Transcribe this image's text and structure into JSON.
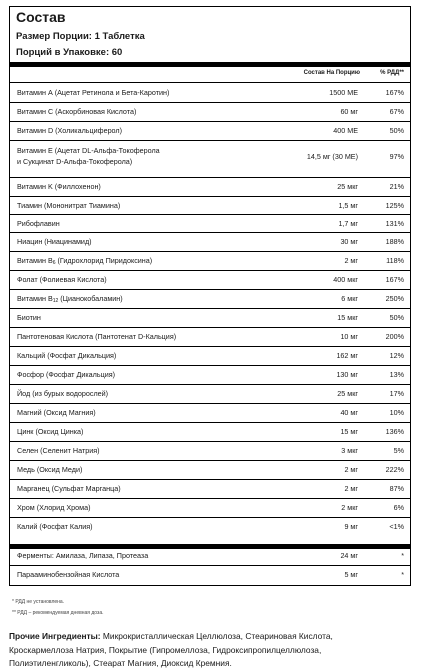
{
  "title": "Состав",
  "serving_size": "Размер Порции: 1 Таблетка",
  "servings": "Порций в Упаковке: 60",
  "headers": {
    "amount": "Состав На Порцию",
    "dv": "% РДД**"
  },
  "rows": [
    {
      "name": "Витамин А (Ацетат Ретинола и Бета-Каротин)",
      "amount": "1500 МЕ",
      "dv": "167%"
    },
    {
      "name": "Витамин С (Аскорбиновая Кислота)",
      "amount": "60 мг",
      "dv": "67%"
    },
    {
      "name": "Витамин D (Холикальциферол)",
      "amount": "400 МЕ",
      "dv": "50%"
    },
    {
      "name": "Витамин Е (Ацетат DL-Альфа-Токоферола",
      "name2": "и Сукцинат D-Альфа-Токоферола)",
      "amount": "14,5 мг (30 МЕ)",
      "dv": "97%"
    },
    {
      "name": "Витамин K (Филлохенон)",
      "amount": "25 мкг",
      "dv": "21%"
    },
    {
      "name": "Тиамин (Мононитрат Тиамина)",
      "amount": "1,5 мг",
      "dv": "125%"
    },
    {
      "name": "Рибофлавин",
      "amount": "1,7 мг",
      "dv": "131%"
    },
    {
      "name": "Ниацин (Ниацинамид)",
      "amount": "30 мг",
      "dv": "188%"
    },
    {
      "name": "Витамин B",
      "sub": "6",
      "name_rest": " (Гидрохлорид Пиридоксина)",
      "amount": "2 мг",
      "dv": "118%"
    },
    {
      "name": "Фолат (Фолиевая Кислота)",
      "amount": "400 мкг",
      "dv": "167%"
    },
    {
      "name": "Витамин B",
      "sub": "12",
      "name_rest": " (Цианокобаламин)",
      "amount": "6 мкг",
      "dv": "250%"
    },
    {
      "name": "Биотин",
      "amount": "15 мкг",
      "dv": "50%"
    },
    {
      "name": "Пантотеновая Кислота (Пантотенат D-Кальция)",
      "amount": "10 мг",
      "dv": "200%"
    },
    {
      "name": "Кальций (Фосфат Дикальция)",
      "amount": "162 мг",
      "dv": "12%"
    },
    {
      "name": "Фосфор (Фосфат Дикальция)",
      "amount": "130 мг",
      "dv": "13%"
    },
    {
      "name": "Йод (из бурых водорослей)",
      "amount": "25 мкг",
      "dv": "17%"
    },
    {
      "name": "Магний (Оксид Магния)",
      "amount": "40 мг",
      "dv": "10%"
    },
    {
      "name": "Цинк (Оксид Цинка)",
      "amount": "15 мг",
      "dv": "136%"
    },
    {
      "name": "Селен (Селенит Натрия)",
      "amount": "3 мкг",
      "dv": "5%"
    },
    {
      "name": "Медь (Оксид Меди)",
      "amount": "2 мг",
      "dv": "222%"
    },
    {
      "name": "Марганец (Сульфат Марганца)",
      "amount": "2 мг",
      "dv": "87%"
    },
    {
      "name": "Хром (Хлорид Хрома)",
      "amount": "2 мкг",
      "dv": "6%"
    },
    {
      "name": "Калий (Фосфат Калия)",
      "amount": "9 мг",
      "dv": "<1%"
    }
  ],
  "rows2": [
    {
      "name": "Ферменты: Амилаза, Липаза, Протеаза",
      "amount": "24 мг",
      "dv": "*"
    },
    {
      "name": "Парааминобензойная Кислота",
      "amount": "5 мг",
      "dv": "*"
    }
  ],
  "footnotes": [
    "* РДД не установлена.",
    "** РДД – рекомендуемая дневная доза."
  ],
  "other": {
    "label": "Прочие Ингредиенты:",
    "line1": " Микрокристаллическая Целлюлоза, Стеариновая Кислота,",
    "line2": "Кроскармеллоза Натрия, Покрытие (Гипромеллоза, Гидроксипропилцеллюлоза,",
    "line3": "Полиэтиленгликоль), Стеарат Магния, Диоксид Кремния."
  }
}
